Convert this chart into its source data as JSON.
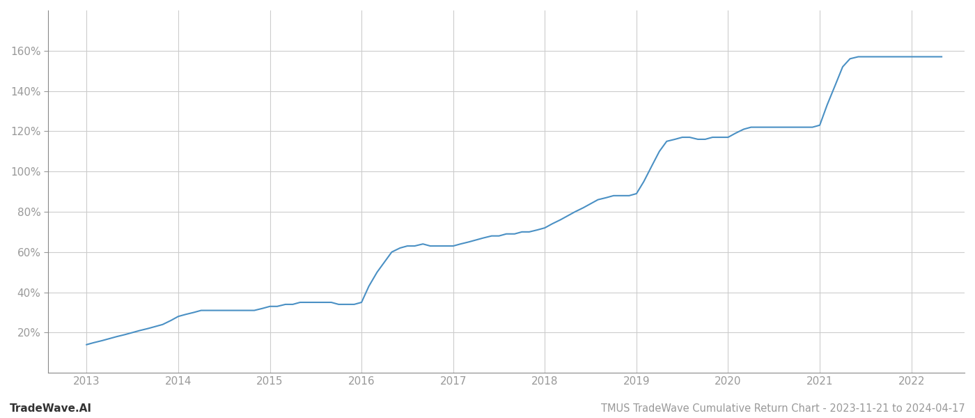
{
  "title": "TMUS TradeWave Cumulative Return Chart - 2023-11-21 to 2024-04-17",
  "watermark": "TradeWave.AI",
  "line_color": "#4a90c4",
  "background_color": "#ffffff",
  "grid_color": "#cccccc",
  "x_years": [
    2013,
    2014,
    2015,
    2016,
    2017,
    2018,
    2019,
    2020,
    2021,
    2022
  ],
  "data_x": [
    2013.0,
    2013.08,
    2013.17,
    2013.25,
    2013.33,
    2013.42,
    2013.5,
    2013.58,
    2013.67,
    2013.75,
    2013.83,
    2013.92,
    2014.0,
    2014.08,
    2014.17,
    2014.25,
    2014.33,
    2014.42,
    2014.5,
    2014.58,
    2014.67,
    2014.75,
    2014.83,
    2014.92,
    2015.0,
    2015.08,
    2015.17,
    2015.25,
    2015.33,
    2015.42,
    2015.5,
    2015.58,
    2015.67,
    2015.75,
    2015.83,
    2015.92,
    2016.0,
    2016.08,
    2016.17,
    2016.25,
    2016.33,
    2016.42,
    2016.5,
    2016.58,
    2016.67,
    2016.75,
    2016.83,
    2016.92,
    2017.0,
    2017.08,
    2017.17,
    2017.25,
    2017.33,
    2017.42,
    2017.5,
    2017.58,
    2017.67,
    2017.75,
    2017.83,
    2017.92,
    2018.0,
    2018.08,
    2018.17,
    2018.25,
    2018.33,
    2018.42,
    2018.5,
    2018.58,
    2018.67,
    2018.75,
    2018.83,
    2018.92,
    2019.0,
    2019.08,
    2019.17,
    2019.25,
    2019.33,
    2019.42,
    2019.5,
    2019.58,
    2019.67,
    2019.75,
    2019.83,
    2019.92,
    2020.0,
    2020.08,
    2020.17,
    2020.25,
    2020.33,
    2020.42,
    2020.5,
    2020.58,
    2020.67,
    2020.75,
    2020.83,
    2020.92,
    2021.0,
    2021.08,
    2021.17,
    2021.25,
    2021.33,
    2021.42,
    2021.5,
    2021.58,
    2021.67,
    2021.75,
    2021.83,
    2021.92,
    2022.0,
    2022.08,
    2022.17,
    2022.25,
    2022.33
  ],
  "data_y": [
    14,
    15,
    16,
    17,
    18,
    19,
    20,
    21,
    22,
    23,
    24,
    26,
    28,
    29,
    30,
    31,
    31,
    31,
    31,
    31,
    31,
    31,
    31,
    32,
    33,
    33,
    34,
    34,
    35,
    35,
    35,
    35,
    35,
    34,
    34,
    34,
    35,
    43,
    50,
    55,
    60,
    62,
    63,
    63,
    64,
    63,
    63,
    63,
    63,
    64,
    65,
    66,
    67,
    68,
    68,
    69,
    69,
    70,
    70,
    71,
    72,
    74,
    76,
    78,
    80,
    82,
    84,
    86,
    87,
    88,
    88,
    88,
    89,
    95,
    103,
    110,
    115,
    116,
    117,
    117,
    116,
    116,
    117,
    117,
    117,
    119,
    121,
    122,
    122,
    122,
    122,
    122,
    122,
    122,
    122,
    122,
    123,
    133,
    143,
    152,
    156,
    157,
    157,
    157,
    157,
    157,
    157,
    157,
    157,
    157,
    157,
    157,
    157
  ],
  "ylim": [
    0,
    180
  ],
  "xlim": [
    2012.58,
    2022.58
  ],
  "yticks": [
    20,
    40,
    60,
    80,
    100,
    120,
    140,
    160
  ],
  "ytick_labels": [
    "20%",
    "40%",
    "60%",
    "80%",
    "100%",
    "120%",
    "140%",
    "160%"
  ],
  "line_width": 1.5,
  "title_fontsize": 10.5,
  "watermark_fontsize": 11,
  "tick_fontsize": 11,
  "tick_color": "#999999",
  "axis_color": "#888888",
  "spine_color": "#888888"
}
